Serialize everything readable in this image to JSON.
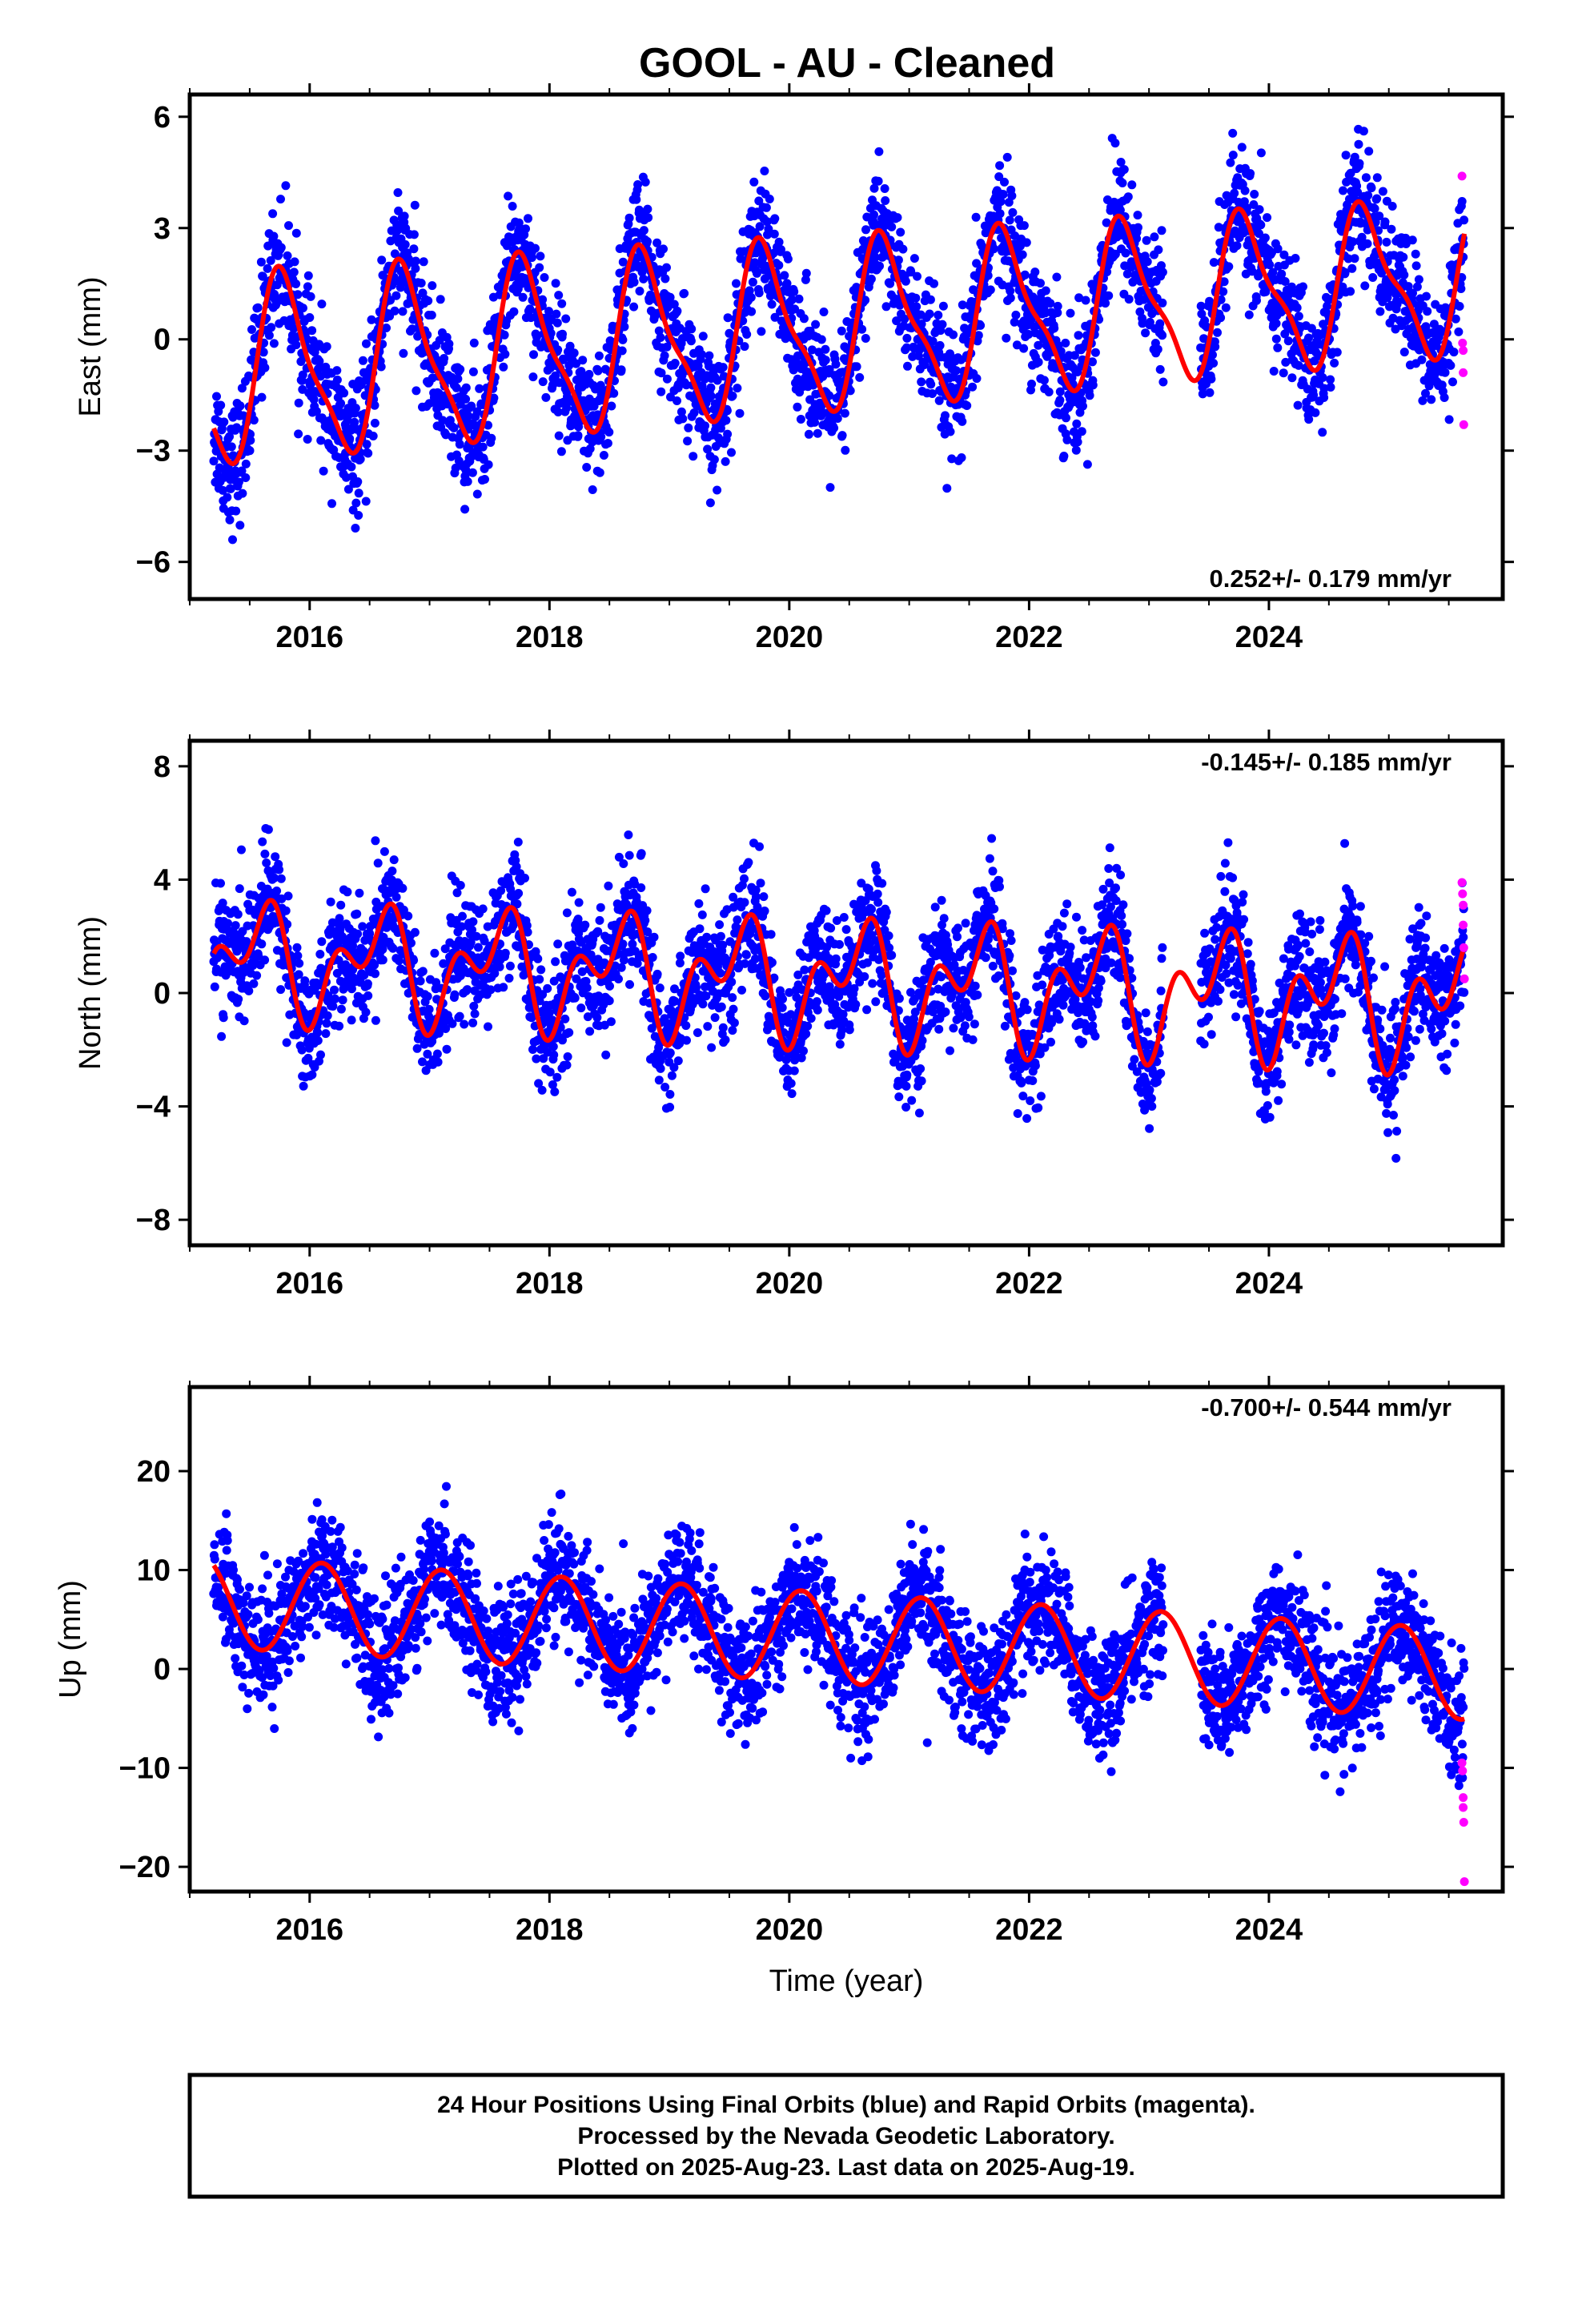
{
  "title": "GOOL  - AU - Cleaned",
  "x_label": "Time (year)",
  "footer": [
    "24 Hour Positions Using Final Orbits (blue) and Rapid Orbits (magenta).",
    "Processed by the Nevada Geodetic Laboratory.",
    "Plotted on 2025-Aug-23. Last data on 2025-Aug-19."
  ],
  "colors": {
    "final": "#0000ff",
    "rapid": "#ff00ff",
    "model": "#ff0000"
  },
  "chart_data": [
    {
      "type": "scatter",
      "ylabel": "East (mm)",
      "rate_text": "0.252+/- 0.179 mm/yr",
      "xlim": [
        2015.0,
        2025.95
      ],
      "ylim": [
        -7,
        6.6
      ],
      "xticks": [
        2016,
        2018,
        2020,
        2022,
        2024
      ],
      "yticks": [
        -6,
        -3,
        0,
        3,
        6
      ],
      "tick_labels": [
        "−6",
        "−3",
        "0",
        "3",
        "6"
      ],
      "data_start": 2015.2,
      "data_end": 2025.63,
      "model": {
        "offset": 0.252,
        "slope": 0.252,
        "annual_sin": [
          -2.06,
          0.058
        ],
        "annual_cos": [
          0.63,
          0.022
        ],
        "semi_sin": [
          0.4,
          0.0
        ],
        "semi_cos": [
          -0.48,
          0.0
        ]
      },
      "scatter_sd": 0.85,
      "points_per_year": 330,
      "gaps": [
        [
          2023.12,
          2023.43
        ]
      ],
      "rapid_points": [
        {
          "x": 2025.61,
          "y": 4.4
        },
        {
          "x": 2025.615,
          "y": -0.1
        },
        {
          "x": 2025.62,
          "y": -0.3
        },
        {
          "x": 2025.62,
          "y": -0.9
        },
        {
          "x": 2025.625,
          "y": -2.3
        }
      ]
    },
    {
      "type": "scatter",
      "ylabel": "North (mm)",
      "rate_text": "-0.145+/- 0.185 mm/yr",
      "xlim": [
        2015.0,
        2025.95
      ],
      "ylim": [
        -8.9,
        8.9
      ],
      "xticks": [
        2016,
        2018,
        2020,
        2022,
        2024
      ],
      "yticks": [
        -8,
        -4,
        0,
        4,
        8
      ],
      "tick_labels": [
        "−8",
        "−4",
        "0",
        "4",
        "8"
      ],
      "data_start": 2015.2,
      "data_end": 2025.63,
      "model": {
        "offset": 0.5,
        "slope": -0.145,
        "annual_sin": [
          -0.55,
          0.0
        ],
        "annual_cos": [
          -1.35,
          0.0
        ],
        "semi_sin": [
          0.55,
          0.0
        ],
        "semi_cos": [
          -1.15,
          -0.03
        ]
      },
      "scatter_sd": 1.05,
      "points_per_year": 330,
      "gaps": [
        [
          2023.12,
          2023.43
        ]
      ],
      "rapid_points": [
        {
          "x": 2025.61,
          "y": 3.9
        },
        {
          "x": 2025.615,
          "y": 3.5
        },
        {
          "x": 2025.62,
          "y": 3.1
        },
        {
          "x": 2025.62,
          "y": 2.4
        },
        {
          "x": 2025.625,
          "y": 1.6
        },
        {
          "x": 2025.63,
          "y": 0.5
        }
      ]
    },
    {
      "type": "scatter",
      "ylabel": "Up (mm)",
      "rate_text": "-0.700+/- 0.544 mm/yr",
      "xlim": [
        2015.0,
        2025.95
      ],
      "ylim": [
        -22.5,
        28.5
      ],
      "xticks": [
        2016,
        2018,
        2020,
        2022,
        2024
      ],
      "yticks": [
        -20,
        -10,
        0,
        10,
        20
      ],
      "tick_labels": [
        "−20",
        "−10",
        "0",
        "10",
        "20"
      ],
      "data_start": 2015.2,
      "data_end": 2025.63,
      "model": {
        "offset": 3.4,
        "slope": -0.7,
        "annual_sin": [
          2.7,
          0.0
        ],
        "annual_cos": [
          3.7,
          0.0
        ],
        "semi_sin": [
          0.0,
          0.0
        ],
        "semi_cos": [
          0.0,
          0.0
        ]
      },
      "scatter_sd": 3.0,
      "points_per_year": 330,
      "gaps": [
        [
          2023.12,
          2023.43
        ]
      ],
      "rapid_points": [
        {
          "x": 2025.61,
          "y": -9.5
        },
        {
          "x": 2025.615,
          "y": -10.3
        },
        {
          "x": 2025.62,
          "y": -13.0
        },
        {
          "x": 2025.62,
          "y": -14.0
        },
        {
          "x": 2025.625,
          "y": -15.5
        },
        {
          "x": 2025.63,
          "y": -21.5
        }
      ]
    }
  ]
}
